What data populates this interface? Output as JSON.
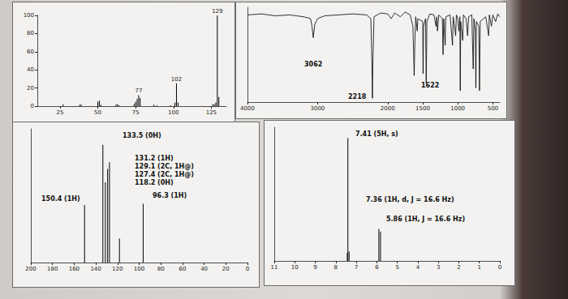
{
  "chart_data": [
    {
      "type": "bar",
      "color": "#000000",
      "x": [
        27,
        38,
        39,
        50,
        51,
        52,
        62,
        63,
        64,
        74,
        75,
        76,
        77,
        78,
        87,
        89,
        98,
        101,
        102,
        103,
        126,
        127,
        128,
        129,
        130
      ],
      "values": [
        2,
        1.5,
        2,
        5,
        6,
        1.5,
        1.5,
        2.5,
        1,
        2.5,
        5,
        8,
        12,
        9,
        1.5,
        1,
        1,
        4,
        25,
        4,
        2,
        2,
        4,
        100,
        10
      ],
      "xlim": [
        10,
        135
      ],
      "xticks": [
        25,
        50,
        75,
        100,
        125
      ],
      "ylim": [
        0,
        100
      ],
      "yticks": [
        0,
        20,
        40,
        60,
        80,
        100
      ],
      "annotations": [
        {
          "x": 129,
          "text": "129"
        },
        {
          "x": 102,
          "text": "102"
        },
        {
          "x": 77,
          "text": "77"
        }
      ]
    },
    {
      "type": "line",
      "color": "#000000",
      "tick_labels": "x",
      "x": [
        4000,
        3800,
        3600,
        3400,
        3200,
        3100,
        3080,
        3062,
        3040,
        3000,
        2900,
        2700,
        2500,
        2300,
        2240,
        2225,
        2218,
        2210,
        2195,
        2100,
        2000,
        1950,
        1900,
        1820,
        1750,
        1680,
        1640,
        1622,
        1610,
        1600,
        1578,
        1570,
        1500,
        1495,
        1488,
        1460,
        1450,
        1440,
        1400,
        1340,
        1310,
        1300,
        1290,
        1270,
        1220,
        1210,
        1200,
        1180,
        1170,
        1110,
        1075,
        1065,
        1030,
        1020,
        1000,
        985,
        970,
        965,
        958,
        930,
        920,
        880,
        860,
        845,
        800,
        780,
        770,
        750,
        742,
        735,
        700,
        690,
        680,
        600,
        560,
        550,
        520,
        500,
        460,
        430,
        400
      ],
      "values": [
        92,
        93,
        91,
        92,
        90,
        88,
        80,
        68,
        82,
        88,
        91,
        92,
        93,
        92,
        88,
        40,
        4,
        45,
        90,
        94,
        93,
        88,
        94,
        90,
        95,
        92,
        80,
        28,
        70,
        90,
        75,
        88,
        85,
        30,
        80,
        88,
        20,
        85,
        93,
        92,
        80,
        90,
        75,
        92,
        88,
        50,
        88,
        60,
        90,
        92,
        60,
        90,
        70,
        92,
        88,
        75,
        90,
        12,
        85,
        65,
        92,
        88,
        70,
        90,
        92,
        35,
        88,
        75,
        15,
        85,
        80,
        12,
        85,
        90,
        70,
        92,
        80,
        92,
        85,
        93,
        90
      ],
      "xlim": [
        4000,
        400
      ],
      "xticks": [
        4000,
        3000,
        2000,
        1500,
        1000,
        500
      ],
      "ylim": [
        0,
        100
      ],
      "annotations": [
        {
          "text": "3062"
        },
        {
          "text": "2218"
        },
        {
          "text": "1622"
        }
      ]
    },
    {
      "type": "bar",
      "color": "#000000",
      "tick_labels": "x",
      "x": [
        150.4,
        133.5,
        131.2,
        129.1,
        127.4,
        118.2,
        96.3
      ],
      "values": [
        43,
        88,
        60,
        70,
        75,
        18,
        44
      ],
      "xlim": [
        200,
        0
      ],
      "xticks": [
        200,
        180,
        160,
        140,
        120,
        100,
        80,
        60,
        40,
        20,
        0
      ],
      "ylim": [
        0,
        100
      ],
      "annotations": [
        {
          "text": "133.5 (0H)"
        },
        {
          "text": "131.2 (1H)"
        },
        {
          "text": "129.1 (2C, 1H@)"
        },
        {
          "text": "127.4 (2C, 1H@)"
        },
        {
          "text": "118.2 (0H)"
        },
        {
          "text": "150.4 (1H)"
        },
        {
          "text": "96.3 (1H)"
        }
      ]
    },
    {
      "type": "bar",
      "color": "#000000",
      "tick_labels": "x",
      "x": [
        7.44,
        7.41,
        7.35,
        5.9,
        5.82
      ],
      "values": [
        6,
        92,
        7,
        24,
        22
      ],
      "xlim": [
        11,
        0
      ],
      "xticks": [
        11,
        10,
        9,
        8,
        7,
        6,
        5,
        4,
        3,
        2,
        1,
        0
      ],
      "ylim": [
        0,
        100
      ],
      "annotations": [
        {
          "text": "7.41 (5H, s)"
        },
        {
          "text": "7.36 (1H, d, J = 16.6 Hz)"
        },
        {
          "text": "5.86 (1H, J = 16.6 Hz)"
        }
      ]
    }
  ]
}
